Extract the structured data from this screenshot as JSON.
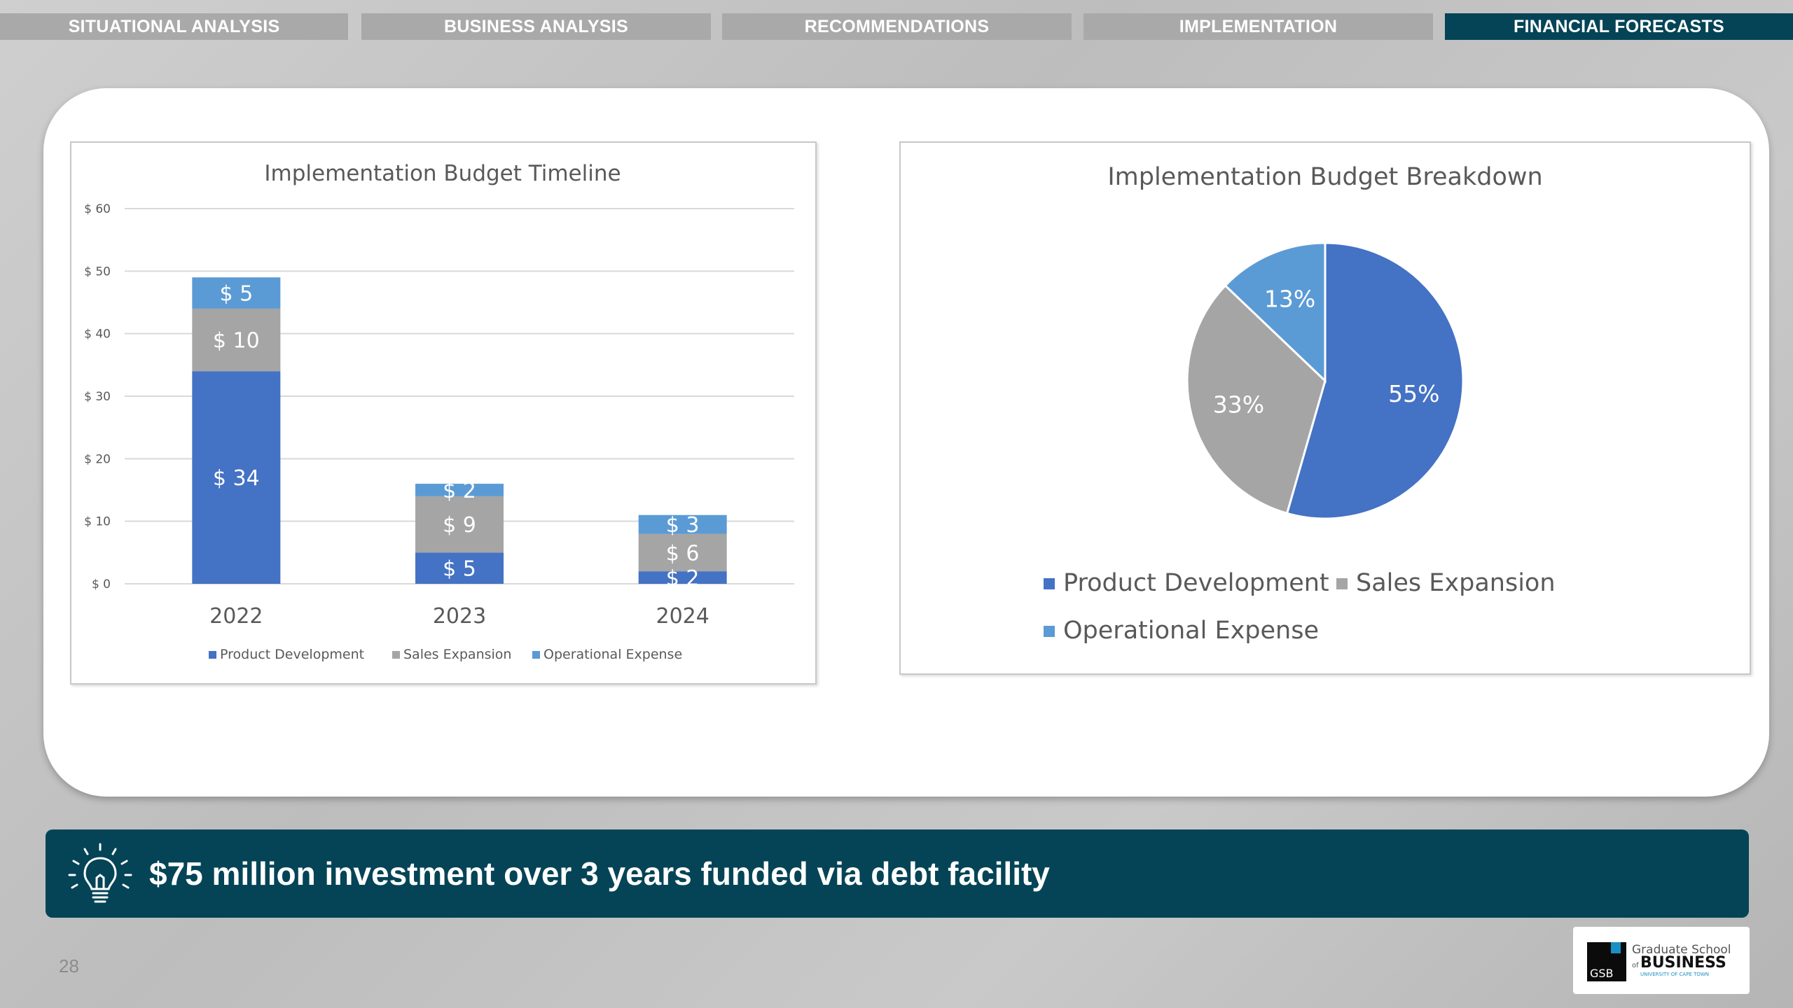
{
  "nav": {
    "tabs": [
      {
        "label": "SITUATIONAL ANALYSIS",
        "active": false
      },
      {
        "label": "BUSINESS ANALYSIS",
        "active": false
      },
      {
        "label": "RECOMMENDATIONS",
        "active": false
      },
      {
        "label": "IMPLEMENTATION",
        "active": false
      },
      {
        "label": "FINANCIAL FORECASTS",
        "active": true
      }
    ]
  },
  "chart_data": [
    {
      "type": "bar",
      "stacked": true,
      "title": "Implementation Budget Timeline",
      "categories": [
        "2022",
        "2023",
        "2024"
      ],
      "series": [
        {
          "name": "Product Development",
          "color": "#4472c4",
          "values": [
            34,
            5,
            2
          ],
          "labels": [
            "$ 34",
            "$ 5",
            "$ 2"
          ]
        },
        {
          "name": "Sales Expansion",
          "color": "#a5a5a5",
          "values": [
            10,
            9,
            6
          ],
          "labels": [
            "$ 10",
            "$ 9",
            "$ 6"
          ]
        },
        {
          "name": "Operational Expense",
          "color": "#5b9bd5",
          "values": [
            5,
            2,
            3
          ],
          "labels": [
            "$ 5",
            "$ 2",
            "$ 3"
          ]
        }
      ],
      "ylim": [
        0,
        60
      ],
      "yticks": [
        0,
        10,
        20,
        30,
        40,
        50,
        60
      ],
      "ytick_labels": [
        "$ 0",
        "$ 10",
        "$ 20",
        "$ 30",
        "$ 40",
        "$ 50",
        "$ 60"
      ],
      "grid": true,
      "legend": "bottom"
    },
    {
      "type": "pie",
      "title": "Implementation Budget Breakdown",
      "slices": [
        {
          "name": "Product Development",
          "value": 55,
          "label": "55%",
          "color": "#4472c4"
        },
        {
          "name": "Sales Expansion",
          "value": 33,
          "label": "33%",
          "color": "#a5a5a5"
        },
        {
          "name": "Operational Expense",
          "value": 13,
          "label": "13%",
          "color": "#5b9bd5"
        }
      ],
      "legend": "bottom"
    }
  ],
  "banner": {
    "text": "$75 million investment over 3 years funded via debt facility",
    "icon": "lightbulb-icon"
  },
  "footer": {
    "page_number": "28",
    "logo": {
      "school": "Graduate School",
      "of": "of",
      "business": "BUSINESS",
      "university": "UNIVERSITY OF CAPE TOWN",
      "badge": "GSB"
    }
  }
}
